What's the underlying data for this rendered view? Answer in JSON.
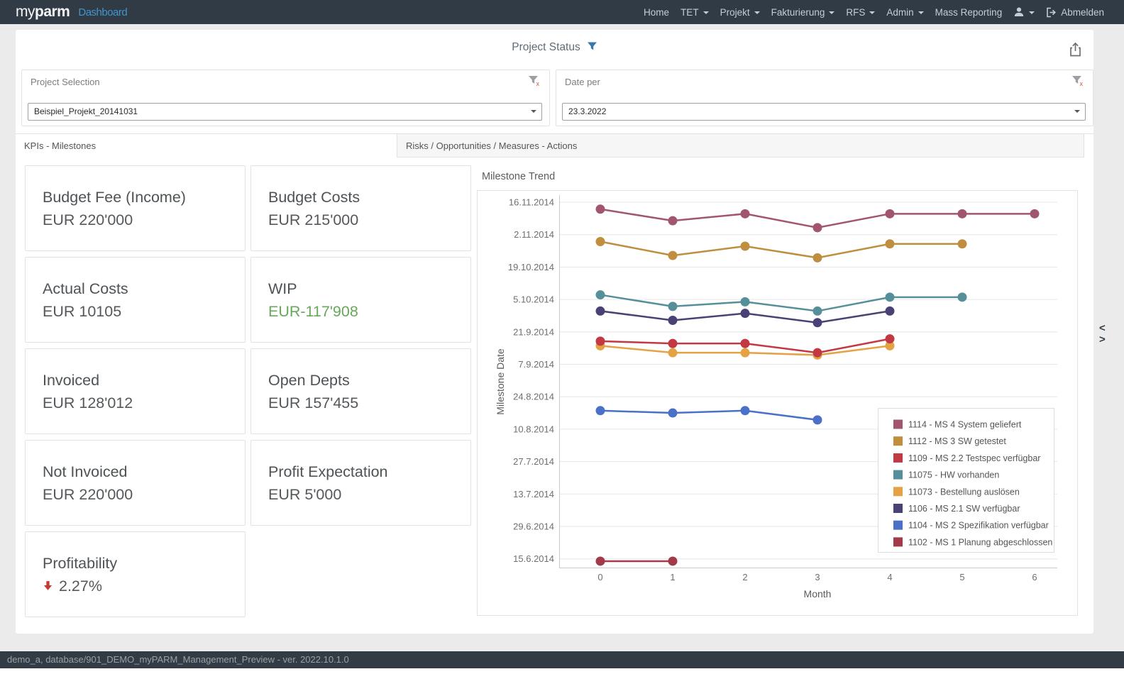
{
  "navbar": {
    "logo_my": "my",
    "logo_parm": "parm",
    "app_title": "Dashboard",
    "items": [
      {
        "label": "Home",
        "caret": false
      },
      {
        "label": "TET",
        "caret": true
      },
      {
        "label": "Projekt",
        "caret": true
      },
      {
        "label": "Fakturierung",
        "caret": true
      },
      {
        "label": "RFS",
        "caret": true
      },
      {
        "label": "Admin",
        "caret": true
      },
      {
        "label": "Mass Reporting",
        "caret": false
      }
    ],
    "logout_label": "Abmelden"
  },
  "header": {
    "title": "Project Status"
  },
  "filters": {
    "project_selection": {
      "label": "Project Selection",
      "value": "Beispiel_Projekt_20141031"
    },
    "date_per": {
      "label": "Date per",
      "value": "23.3.2022"
    }
  },
  "tabs": [
    {
      "label": "KPIs - Milestones",
      "active": true
    },
    {
      "label": "Risks / Opportunities / Measures - Actions",
      "active": false
    }
  ],
  "kpis": [
    {
      "title": "Budget Fee (Income)",
      "value": "EUR 220'000"
    },
    {
      "title": "Budget Costs",
      "value": "EUR 215'000"
    },
    {
      "title": "Actual Costs",
      "value": "EUR 10105"
    },
    {
      "title": "WIP",
      "value": "EUR-117'908",
      "value_color": "#67a85a"
    },
    {
      "title": "Invoiced",
      "value": "EUR 128'012"
    },
    {
      "title": "Open Depts",
      "value": "EUR 157'455"
    },
    {
      "title": "Not Invoiced",
      "value": "EUR 220'000"
    },
    {
      "title": "Profit Expectation",
      "value": "EUR 5'000"
    },
    {
      "title": "Profitability",
      "value": "2.27%",
      "trend": "down",
      "trend_color": "#c43b33"
    }
  ],
  "chart_data": {
    "type": "line",
    "title": "Milestone Trend",
    "xlabel": "Month",
    "ylabel": "Milestone Date",
    "x_ticks": [
      0,
      1,
      2,
      3,
      4,
      5,
      6
    ],
    "y_ticks": [
      "16.11.2014",
      "2.11.2014",
      "19.10.2014",
      "5.10.2014",
      "21.9.2014",
      "7.9.2014",
      "24.8.2014",
      "10.8.2014",
      "27.7.2014",
      "13.7.2014",
      "29.6.2014",
      "15.6.2014"
    ],
    "grid": true,
    "legend_position": "inside-right",
    "series": [
      {
        "name": "1114 - MS 4 System geliefert",
        "color": "#a2566d",
        "x": [
          0,
          1,
          2,
          3,
          4,
          5,
          6
        ],
        "dates": [
          "13.11.2014",
          "8.11.2014",
          "11.11.2014",
          "5.11.2014",
          "11.11.2014",
          "11.11.2014",
          "11.11.2014"
        ]
      },
      {
        "name": "1112 - MS 3 SW getestet",
        "color": "#bf8e3e",
        "x": [
          0,
          1,
          2,
          3,
          4,
          5
        ],
        "dates": [
          "30.10.2014",
          "24.10.2014",
          "28.10.2014",
          "23.10.2014",
          "29.10.2014",
          "29.10.2014"
        ]
      },
      {
        "name": "1109 - MS 2.2 Testspec verfügbar",
        "color": "#c23843",
        "x": [
          0,
          1,
          2,
          3,
          4
        ],
        "dates": [
          "17.9.2014",
          "16.9.2014",
          "16.9.2014",
          "12.9.2014",
          "18.9.2014"
        ]
      },
      {
        "name": "11075 - HW vorhanden",
        "color": "#55909a",
        "x": [
          0,
          1,
          2,
          3,
          4,
          5
        ],
        "dates": [
          "7.10.2014",
          "2.10.2014",
          "4.10.2014",
          "30.9.2014",
          "6.10.2014",
          "6.10.2014"
        ]
      },
      {
        "name": "11073 - Bestellung auslösen",
        "color": "#e5a245",
        "x": [
          0,
          1,
          2,
          3,
          4
        ],
        "dates": [
          "15.9.2014",
          "12.9.2014",
          "12.9.2014",
          "11.9.2014",
          "15.9.2014"
        ]
      },
      {
        "name": "1106 - MS 2.1 SW verfügbar",
        "color": "#494274",
        "x": [
          0,
          1,
          2,
          3,
          4
        ],
        "dates": [
          "30.9.2014",
          "26.9.2014",
          "29.9.2014",
          "25.9.2014",
          "30.9.2014"
        ]
      },
      {
        "name": "1104 - MS 2 Spezifikation verfügbar",
        "color": "#4a70c8",
        "x": [
          0,
          1,
          2,
          3
        ],
        "dates": [
          "18.8.2014",
          "17.8.2014",
          "18.8.2014",
          "14.8.2014"
        ]
      },
      {
        "name": "1102 - MS 1 Planung abgeschlossen",
        "color": "#a23a49",
        "x": [
          0,
          1
        ],
        "dates": [
          "14.6.2014",
          "14.6.2014"
        ]
      }
    ]
  },
  "side_handle": {
    "collapse": "<",
    "expand": ">"
  },
  "statusbar": {
    "text": "demo_a, database/901_DEMO_myPARM_Management_Preview - ver. 2022.10.1.0"
  }
}
